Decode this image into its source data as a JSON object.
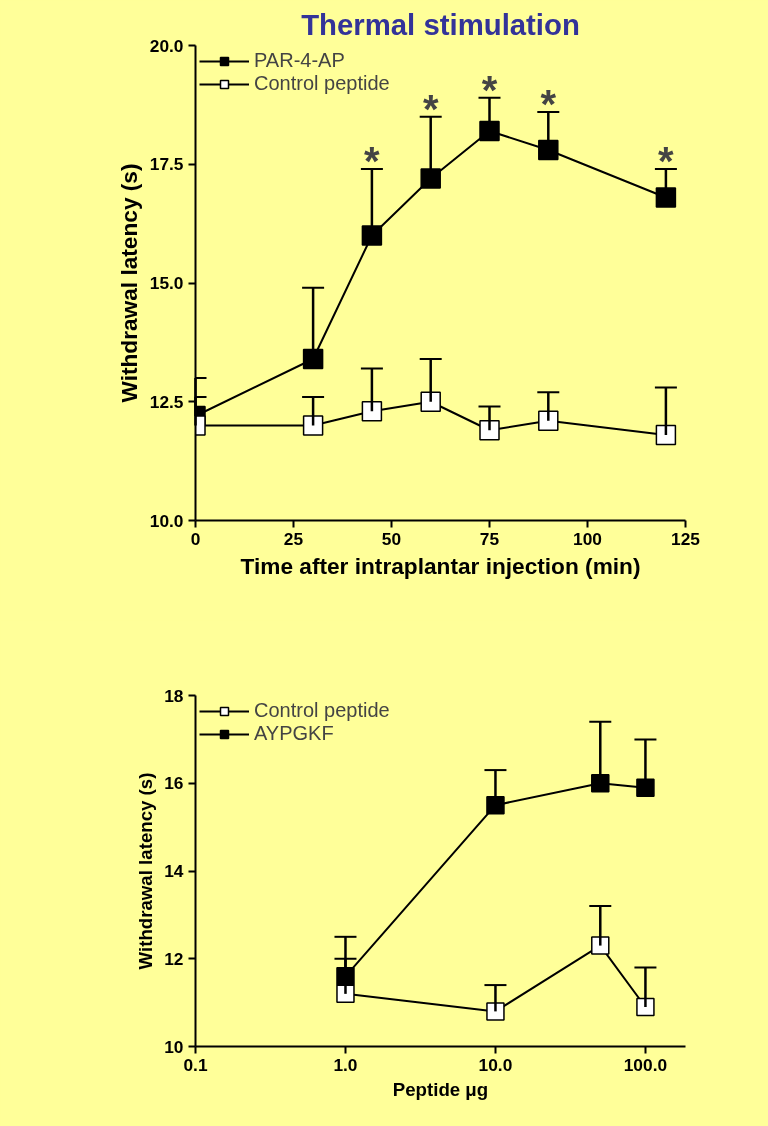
{
  "chart_data": [
    {
      "type": "line",
      "title": "Thermal stimulation",
      "xlabel": "Time after intraplantar injection (min)",
      "ylabel": "Withdrawal latency (s)",
      "x": [
        0,
        30,
        45,
        60,
        75,
        90,
        120
      ],
      "series": [
        {
          "name": "PAR-4-AP",
          "color": "#000000",
          "values": [
            12.2,
            13.4,
            16.0,
            17.2,
            18.2,
            17.8,
            16.8
          ],
          "errors": [
            [
              12.2,
              13.0
            ],
            [
              13.4,
              14.9
            ],
            [
              16.0,
              17.4
            ],
            [
              17.2,
              18.5
            ],
            [
              18.2,
              18.9
            ],
            [
              17.8,
              18.6
            ],
            [
              16.8,
              17.4
            ]
          ]
        },
        {
          "name": "Control peptide",
          "color": "#ffffff",
          "values": [
            12.0,
            12.0,
            12.3,
            12.5,
            11.9,
            12.1,
            11.8
          ],
          "errors": [
            [
              12.0,
              12.6
            ],
            [
              12.0,
              12.6
            ],
            [
              12.3,
              13.2
            ],
            [
              12.5,
              13.4
            ],
            [
              11.9,
              12.4
            ],
            [
              12.1,
              12.7
            ],
            [
              11.8,
              12.8
            ]
          ]
        }
      ],
      "xlim": [
        0,
        125
      ],
      "xticks": [
        0,
        25,
        50,
        75,
        100,
        125
      ],
      "ylim": [
        10,
        20
      ],
      "yticks": [
        {
          "value": 10,
          "label": "10.0"
        },
        12.5,
        {
          "value": 15,
          "label": "15.0"
        },
        17.5,
        {
          "value": 20,
          "label": "20.0"
        }
      ],
      "annotations": [
        {
          "text": "*",
          "x": 45,
          "y": 16.0
        },
        {
          "text": "*",
          "x": 60,
          "y": 17.2
        },
        {
          "text": "*",
          "x": 75,
          "y": 18.2
        },
        {
          "text": "*",
          "x": 90,
          "y": 17.8
        },
        {
          "text": "*",
          "x": 120,
          "y": 16.8
        }
      ],
      "marker": "square",
      "line_style": "solid",
      "grid": false,
      "legend": "top left"
    },
    {
      "type": "line",
      "xlabel": "Peptide μg",
      "ylabel": "Withdrawal latency (s)",
      "x": [
        1,
        10,
        50,
        100
      ],
      "series": [
        {
          "name": "Control peptide",
          "color": "#ffffff",
          "values": [
            11.2,
            10.8,
            12.3,
            10.9
          ],
          "errors": [
            [
              11.2,
              12.0
            ],
            [
              10.8,
              11.4
            ],
            [
              12.3,
              13.2
            ],
            [
              10.9,
              11.8
            ]
          ]
        },
        {
          "name": "AYPGKF",
          "color": "#000000",
          "values": [
            11.6,
            15.5,
            16.0,
            15.9
          ],
          "errors": [
            [
              11.6,
              12.5
            ],
            [
              15.5,
              16.3
            ],
            [
              16.0,
              17.4
            ],
            [
              15.9,
              17.0
            ]
          ]
        }
      ],
      "log": "x",
      "xlim": [
        0.1,
        185
      ],
      "xticks": [
        0.1,
        {
          "value": 1,
          "label": "1.0"
        },
        {
          "value": 10,
          "label": "10.0"
        },
        {
          "value": 100,
          "label": "100.0"
        }
      ],
      "ylim": [
        10,
        18
      ],
      "yticks": [
        10,
        12,
        14,
        16,
        18
      ],
      "marker": "square",
      "line_style": "solid",
      "grid": false,
      "legend": "top left"
    }
  ]
}
